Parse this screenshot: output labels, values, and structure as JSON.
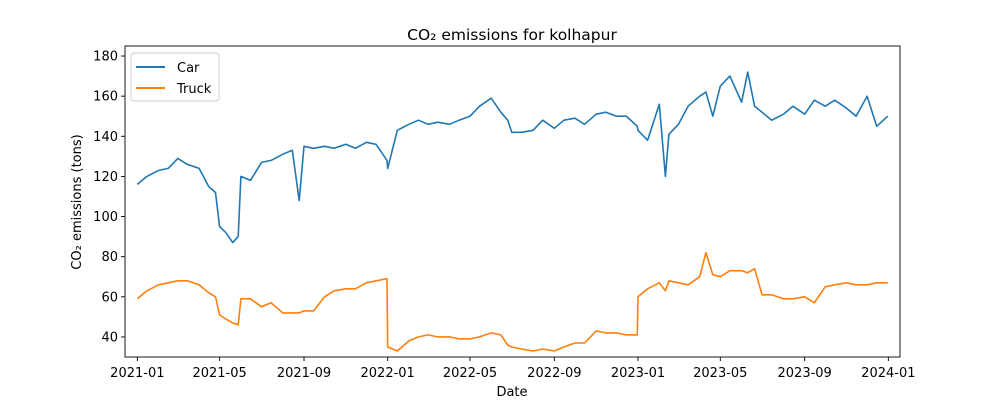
{
  "chart_data": {
    "type": "line",
    "title": "CO₂ emissions for kolhapur",
    "xlabel": "Date",
    "ylabel": "CO₂ emissions (tons)",
    "xlim": [
      "2020-12-14",
      "2024-01-18"
    ],
    "ylim": [
      30,
      185
    ],
    "x_ticks": [
      "2021-01",
      "2021-05",
      "2021-09",
      "2022-01",
      "2022-05",
      "2022-09",
      "2023-01",
      "2023-05",
      "2023-09",
      "2024-01"
    ],
    "y_ticks": [
      40,
      60,
      80,
      100,
      120,
      140,
      160,
      180
    ],
    "grid": false,
    "legend_position": "upper left",
    "x": [
      "2021-01-01",
      "2021-01-15",
      "2021-02-01",
      "2021-02-15",
      "2021-03-01",
      "2021-03-15",
      "2021-04-01",
      "2021-04-15",
      "2021-04-25",
      "2021-05-01",
      "2021-05-10",
      "2021-05-20",
      "2021-05-28",
      "2021-06-01",
      "2021-06-15",
      "2021-07-01",
      "2021-07-15",
      "2021-08-01",
      "2021-08-15",
      "2021-08-25",
      "2021-09-01",
      "2021-09-15",
      "2021-10-01",
      "2021-10-15",
      "2021-11-01",
      "2021-11-15",
      "2021-12-01",
      "2021-12-15",
      "2021-12-31",
      "2022-01-01",
      "2022-01-15",
      "2022-02-01",
      "2022-02-15",
      "2022-03-01",
      "2022-03-15",
      "2022-04-01",
      "2022-04-15",
      "2022-05-01",
      "2022-05-15",
      "2022-06-01",
      "2022-06-15",
      "2022-06-25",
      "2022-07-01",
      "2022-07-15",
      "2022-08-01",
      "2022-08-15",
      "2022-09-01",
      "2022-09-15",
      "2022-10-01",
      "2022-10-15",
      "2022-11-01",
      "2022-11-15",
      "2022-12-01",
      "2022-12-15",
      "2022-12-31",
      "2023-01-01",
      "2023-01-15",
      "2023-02-01",
      "2023-02-10",
      "2023-02-15",
      "2023-03-01",
      "2023-03-15",
      "2023-04-01",
      "2023-04-10",
      "2023-04-20",
      "2023-05-01",
      "2023-05-15",
      "2023-06-01",
      "2023-06-10",
      "2023-06-20",
      "2023-07-01",
      "2023-07-15",
      "2023-08-01",
      "2023-08-15",
      "2023-09-01",
      "2023-09-15",
      "2023-10-01",
      "2023-10-15",
      "2023-11-01",
      "2023-11-15",
      "2023-12-01",
      "2023-12-15",
      "2023-12-31"
    ],
    "series": [
      {
        "name": "Car",
        "color": "#1f77b4",
        "values": [
          116,
          120,
          123,
          124,
          129,
          126,
          124,
          115,
          112,
          95,
          92,
          87,
          90,
          120,
          118,
          127,
          128,
          131,
          133,
          108,
          135,
          134,
          135,
          134,
          136,
          134,
          137,
          136,
          128,
          124,
          143,
          146,
          148,
          146,
          147,
          146,
          148,
          150,
          155,
          159,
          152,
          148,
          142,
          142,
          143,
          148,
          144,
          148,
          149,
          146,
          151,
          152,
          150,
          150,
          145,
          143,
          138,
          156,
          120,
          141,
          146,
          155,
          160,
          162,
          150,
          165,
          170,
          157,
          172,
          155,
          152,
          148,
          151,
          155,
          151,
          158,
          155,
          158,
          154,
          150,
          160,
          145,
          150
        ]
      },
      {
        "name": "Truck",
        "color": "#ff7f0e",
        "values": [
          59,
          63,
          66,
          67,
          68,
          68,
          66,
          62,
          60,
          51,
          49,
          47,
          46,
          59,
          59,
          55,
          57,
          52,
          52,
          52,
          53,
          53,
          60,
          63,
          64,
          64,
          67,
          68,
          69,
          35,
          33,
          38,
          40,
          41,
          40,
          40,
          39,
          39,
          40,
          42,
          41,
          36,
          35,
          34,
          33,
          34,
          33,
          35,
          37,
          37,
          43,
          42,
          42,
          41,
          41,
          60,
          64,
          67,
          63,
          68,
          67,
          66,
          70,
          82,
          71,
          70,
          73,
          73,
          72,
          74,
          61,
          61,
          59,
          59,
          60,
          57,
          65,
          66,
          67,
          66,
          66,
          67,
          67
        ]
      }
    ]
  }
}
